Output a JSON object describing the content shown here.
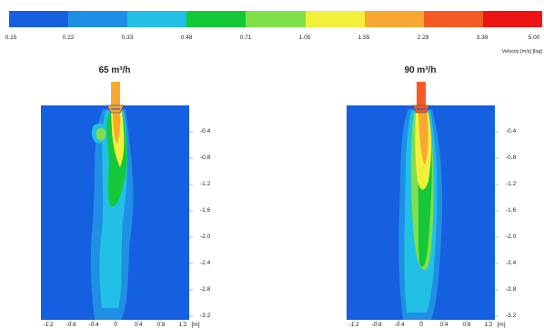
{
  "colorbar": {
    "colors": [
      "#1560e0",
      "#1f8fe6",
      "#22c0e4",
      "#14c83a",
      "#7fe04a",
      "#f2f03a",
      "#f8a830",
      "#f65a24",
      "#ef1414"
    ],
    "tick_labels": [
      "0.15",
      "0.22",
      "0.33",
      "0.48",
      "0.71",
      "1.05",
      "1.55",
      "2.29",
      "3.39",
      "5.00"
    ],
    "unit_label": "Velocity [m/s] [log]"
  },
  "panels": [
    {
      "title": "65 m³/h",
      "y_ticks": [
        "-0.4",
        "-0.8",
        "-1.2",
        "-1.6",
        "-2.0",
        "-2.4",
        "-2.8",
        "-3.2"
      ],
      "x_ticks": [
        "-1.2",
        "-0.8",
        "-0.4",
        "0",
        "0.4",
        "0.8",
        "1.2",
        "[m]"
      ]
    },
    {
      "title": "90 m³/h",
      "y_ticks": [
        "-0.4",
        "-0.8",
        "-1.2",
        "-1.6",
        "-2.0",
        "-2.4",
        "-2.8",
        "-3.2"
      ],
      "x_ticks": [
        "-1.2",
        "-0.8",
        "-0.4",
        "0",
        "0.4",
        "0.8",
        "1.2",
        "[m]"
      ]
    }
  ]
}
